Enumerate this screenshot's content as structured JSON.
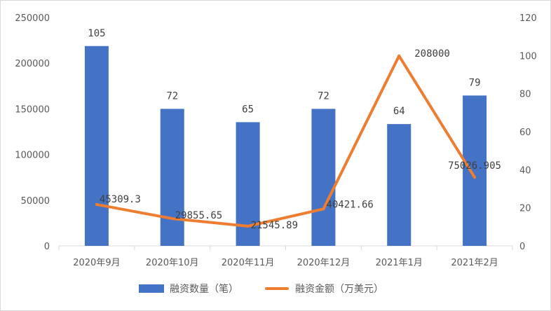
{
  "chart_data": {
    "type": "bar+line",
    "title": "",
    "categories": [
      "2020年9月",
      "2020年10月",
      "2020年11月",
      "2020年12月",
      "2021年1月",
      "2021年2月"
    ],
    "series": [
      {
        "name": "融资数量（笔）",
        "type": "bar",
        "axis": "right",
        "color": "#4472C4",
        "values": [
          105,
          72,
          65,
          72,
          64,
          79
        ],
        "labels": [
          "105",
          "72",
          "65",
          "72",
          "64",
          "79"
        ]
      },
      {
        "name": "融资金额（万美元）",
        "type": "line",
        "axis": "left",
        "color": "#ED7D31",
        "values": [
          45309.3,
          29855.65,
          21545.89,
          40421.66,
          208000,
          75026.905
        ],
        "labels": [
          "45309.3",
          "29855.65",
          "21545.89",
          "40421.66",
          "208000",
          "75026.905"
        ]
      }
    ],
    "y_left": {
      "min": 0,
      "max": 250000,
      "ticks": [
        "0",
        "50000",
        "100000",
        "150000",
        "200000",
        "250000"
      ]
    },
    "y_right": {
      "min": 0,
      "max": 120,
      "ticks": [
        "0",
        "20",
        "40",
        "60",
        "80",
        "100",
        "120"
      ]
    },
    "grid": false,
    "legend": "bottom-center"
  }
}
